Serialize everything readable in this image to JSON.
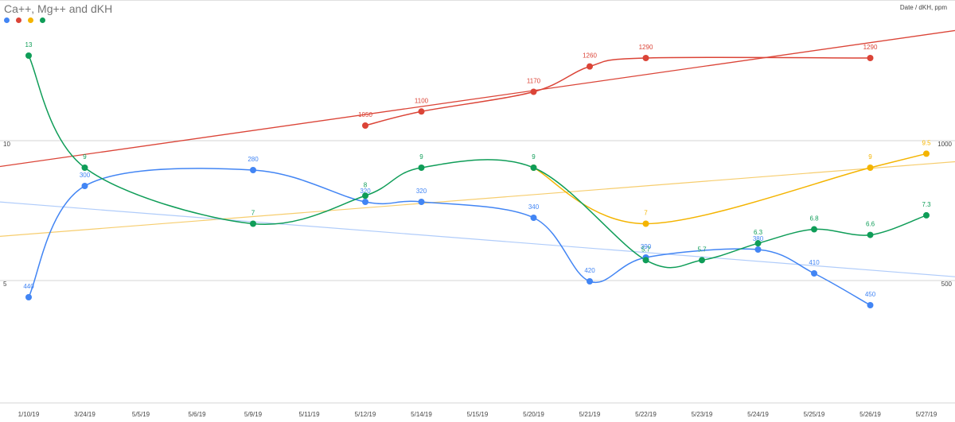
{
  "chart_data": {
    "type": "line",
    "title": "Ca++, Mg++ and dKH",
    "axis_caption": "Date / dKH, ppm",
    "categories": [
      "1/10/19",
      "3/24/19",
      "5/5/19",
      "5/6/19",
      "5/9/19",
      "5/11/19",
      "5/12/19",
      "5/14/19",
      "5/15/19",
      "5/20/19",
      "5/21/19",
      "5/22/19",
      "5/23/19",
      "5/24/19",
      "5/25/19",
      "5/26/19",
      "5/27/19"
    ],
    "left_axis_labels": [
      "10",
      "5"
    ],
    "right_axis_labels": [
      "1000",
      "500"
    ],
    "legend_colors": [
      "#4285f4",
      "#db4437",
      "#f4b400",
      "#0f9d58"
    ],
    "series": [
      {
        "color": "#db4437",
        "values": [
          null,
          null,
          null,
          null,
          null,
          null,
          1050,
          1100,
          null,
          1170,
          1260,
          1290,
          null,
          null,
          null,
          1290,
          null
        ],
        "labels": [
          null,
          null,
          null,
          null,
          null,
          null,
          "1050",
          "1100",
          null,
          "1170",
          "1260",
          "1290",
          null,
          null,
          null,
          "1290",
          null
        ],
        "trendline": true
      },
      {
        "color": "#f4b400",
        "values": [
          null,
          null,
          null,
          null,
          null,
          null,
          null,
          null,
          null,
          9,
          null,
          7,
          null,
          null,
          null,
          9,
          9.5
        ],
        "labels": [
          null,
          null,
          null,
          null,
          null,
          null,
          null,
          null,
          null,
          null,
          null,
          "7",
          null,
          null,
          null,
          "9",
          "9.5"
        ],
        "trendline": true
      },
      {
        "color": "#0f9d58",
        "values": [
          13,
          9,
          null,
          null,
          7,
          null,
          8,
          9,
          null,
          9,
          null,
          5.7,
          5.7,
          6.3,
          6.8,
          6.6,
          7.3
        ],
        "labels": [
          "13",
          "9",
          null,
          null,
          "7",
          null,
          "8",
          "9",
          null,
          "9",
          null,
          "5.7",
          "5.7",
          "6.3",
          "6.8",
          "6.6",
          "7.3"
        ],
        "trendline": false
      },
      {
        "color": "#4285f4",
        "values": [
          440,
          300,
          null,
          null,
          280,
          null,
          320,
          320,
          null,
          340,
          420,
          390,
          null,
          380,
          410,
          450,
          null
        ],
        "labels": [
          "440",
          "300",
          null,
          null,
          "280",
          null,
          "320",
          "320",
          null,
          "340",
          "420",
          "390",
          null,
          "380",
          "410",
          "450",
          null
        ],
        "trendline": true
      }
    ],
    "grid": true
  }
}
